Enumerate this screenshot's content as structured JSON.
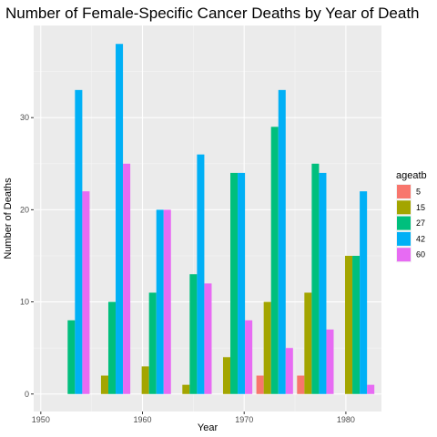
{
  "chart_data": {
    "type": "bar",
    "title": "Number of Female-Specific Cancer Deaths by Year of Death",
    "xlabel": "Year",
    "ylabel": "Number of Deaths",
    "x_ticks": [
      1950,
      1960,
      1970,
      1980
    ],
    "y_ticks": [
      0,
      10,
      20,
      30
    ],
    "xlim": [
      1949.3,
      1983.5
    ],
    "ylim": [
      -1.9,
      40.0
    ],
    "legend_title": "ageatb",
    "legend_position": "right",
    "grid": true,
    "categories": [
      1953,
      1957,
      1961,
      1965,
      1969,
      1973,
      1977,
      1981
    ],
    "series": [
      {
        "name": "5",
        "color": "#F8766D",
        "values": [
          0,
          0,
          0,
          0,
          0,
          2,
          2,
          0
        ]
      },
      {
        "name": "15",
        "color": "#A3A500",
        "values": [
          0,
          2,
          3,
          1,
          4,
          10,
          11,
          15
        ]
      },
      {
        "name": "27",
        "color": "#00BF7D",
        "values": [
          8,
          10,
          11,
          13,
          24,
          29,
          25,
          15
        ]
      },
      {
        "name": "42",
        "color": "#00B0F6",
        "values": [
          33,
          38,
          20,
          26,
          24,
          33,
          24,
          22
        ]
      },
      {
        "name": "60",
        "color": "#E76BF3",
        "values": [
          22,
          25,
          20,
          12,
          8,
          5,
          7,
          1
        ]
      }
    ]
  }
}
